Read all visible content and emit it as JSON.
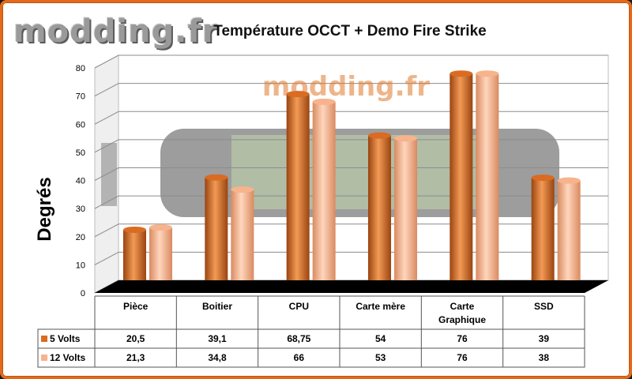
{
  "logo_text": "modding.fr",
  "watermark_text": "modding.fr",
  "chart_data": {
    "type": "bar",
    "title": "Température OCCT + Demo Fire Strike",
    "ylabel": "Degrés",
    "xlabel": "",
    "ylim": [
      0,
      80
    ],
    "yticks": [
      0,
      10,
      20,
      30,
      40,
      50,
      60,
      70,
      80
    ],
    "grid": true,
    "categories": [
      "Pièce",
      "Boitier",
      "CPU",
      "Carte mère",
      "Carte Graphique",
      "SSD"
    ],
    "category_labels": [
      [
        "Pièce"
      ],
      [
        "Boitier"
      ],
      [
        "CPU"
      ],
      [
        "Carte mère"
      ],
      [
        "Carte",
        "Graphique"
      ],
      [
        "SSD"
      ]
    ],
    "series": [
      {
        "name": "5 Volts",
        "values": [
          20.5,
          39.1,
          68.75,
          54,
          76,
          39
        ],
        "labels": [
          "20,5",
          "39,1",
          "68,75",
          "54",
          "76",
          "39"
        ],
        "color": "#d96b22"
      },
      {
        "name": "12 Volts",
        "values": [
          21.3,
          34.8,
          66,
          53,
          76,
          38
        ],
        "labels": [
          "21,3",
          "34,8",
          "66",
          "53",
          "76",
          "38"
        ],
        "color": "#f7b38c"
      }
    ],
    "legend": "data-table"
  }
}
